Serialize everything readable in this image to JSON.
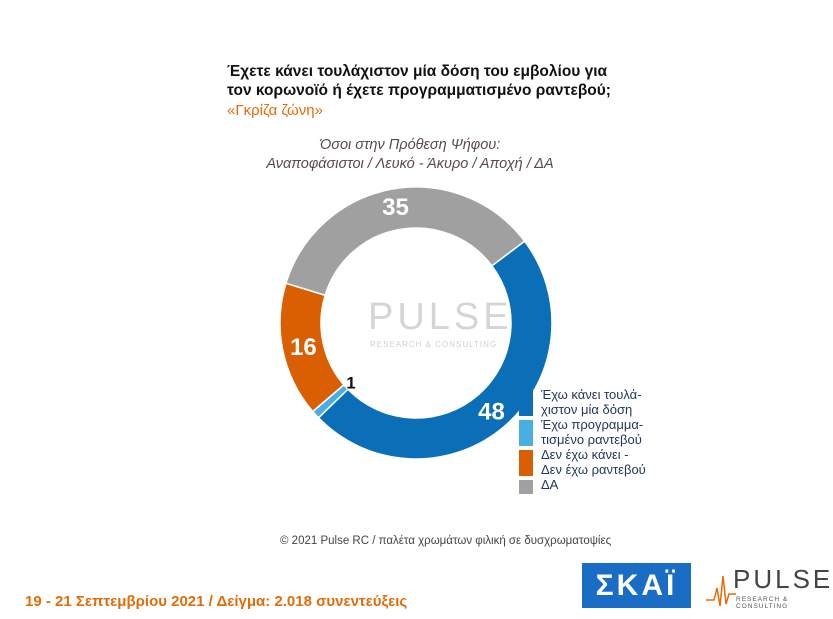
{
  "title": {
    "line1": "Έχετε κάνει τουλάχιστον μία δόση του εμβολίου για",
    "line2": "τον κορωνοϊό ή έχετε προγραμματισμένο ραντεβού;"
  },
  "subtitle": "«Γκρίζα ζώνη»",
  "filter": {
    "line1": "Όσοι στην Πρόθεση Ψήφου:",
    "line2": "Αναποφάσιστοι / Λευκό - Άκυρο / Αποχή / ΔΑ"
  },
  "chart_data": {
    "type": "pie",
    "donut": true,
    "series": [
      {
        "name": "Έχω κάνει τουλά-χιστον μία δόση",
        "value": 48,
        "color": "#0b6fb8"
      },
      {
        "name": "Έχω προγραμμα-τισμένο ραντεβού",
        "value": 1,
        "color": "#4aaee0"
      },
      {
        "name": "Δεν έχω κάνει - Δεν έχω ραντεβού",
        "value": 16,
        "color": "#d95f02"
      },
      {
        "name": "ΔΑ",
        "value": 35,
        "color": "#a0a0a0"
      }
    ],
    "labels": [
      "48",
      "1",
      "16",
      "35"
    ]
  },
  "legend": [
    {
      "line1": "Έχω κάνει τουλά-",
      "line2": "χιστον μία δόση",
      "color": "#0b6fb8"
    },
    {
      "line1": "Έχω προγραμμα-",
      "line2": "τισμένο ραντεβού",
      "color": "#4aaee0"
    },
    {
      "line1": "Δεν έχω κάνει -",
      "line2": "Δεν έχω ραντεβού",
      "color": "#d95f02"
    },
    {
      "line1": "ΔΑ",
      "line2": "",
      "color": "#a0a0a0"
    }
  ],
  "watermark": {
    "word": "PULSE",
    "sub": "RESEARCH & CONSULTING"
  },
  "copyright": "© 2021 Pulse RC  /  παλέτα χρωμάτων φιλική σε δυσχρωματοψίες",
  "footer": "19 - 21 Σεπτεμβρίου 2021  /  Δείγμα:  2.018 συνεντεύξεις",
  "logos": {
    "skai": "ΣΚΑΪ",
    "pulse_word": "PULSE",
    "pulse_sub": "RESEARCH & CONSULTING"
  }
}
